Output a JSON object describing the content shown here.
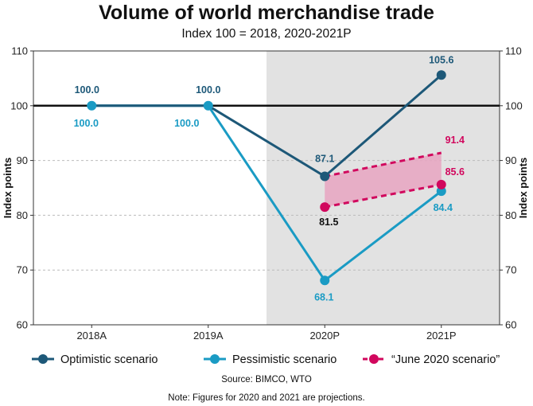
{
  "chart_data": {
    "type": "line",
    "title": "Volume of world merchandise trade",
    "subtitle": "Index 100 = 2018, 2020-2021P",
    "ylabel_left": "Index points",
    "ylabel_right": "Index points",
    "ylim": [
      60,
      110
    ],
    "yticks": [
      60,
      70,
      80,
      90,
      100,
      110
    ],
    "categories": [
      "2018A",
      "2019A",
      "2020P",
      "2021P"
    ],
    "reference_line": 100,
    "projection_shading": [
      "2020P",
      "2021P"
    ],
    "series": [
      {
        "name": "Optimistic scenario",
        "color": "#1d5878",
        "style": "solid",
        "values": [
          100.0,
          100.0,
          87.1,
          105.6
        ],
        "labels": [
          "100.0",
          "100.0",
          "87.1",
          "105.6"
        ]
      },
      {
        "name": "Pessimistic scenario",
        "color": "#1a9bc4",
        "style": "solid",
        "values": [
          100.0,
          100.0,
          68.1,
          84.4
        ],
        "labels": [
          "100.0",
          "100.0",
          "68.1",
          "84.4"
        ]
      },
      {
        "name": "“June 2020 scenario”",
        "color": "#d1075d",
        "style": "dashed",
        "band_upper": {
          "x": [
            "2020P",
            "2021P"
          ],
          "values": [
            87.1,
            91.4
          ],
          "labels": [
            "",
            "91.4"
          ]
        },
        "band_lower": {
          "x": [
            "2020P",
            "2021P"
          ],
          "values": [
            81.5,
            85.6
          ],
          "labels": [
            "81.5",
            "85.6"
          ]
        },
        "fill_color": "#e8a4c1"
      }
    ],
    "source": "Source: BIMCO, WTO",
    "note": "Note: Figures for 2020 and 2021 are projections."
  }
}
